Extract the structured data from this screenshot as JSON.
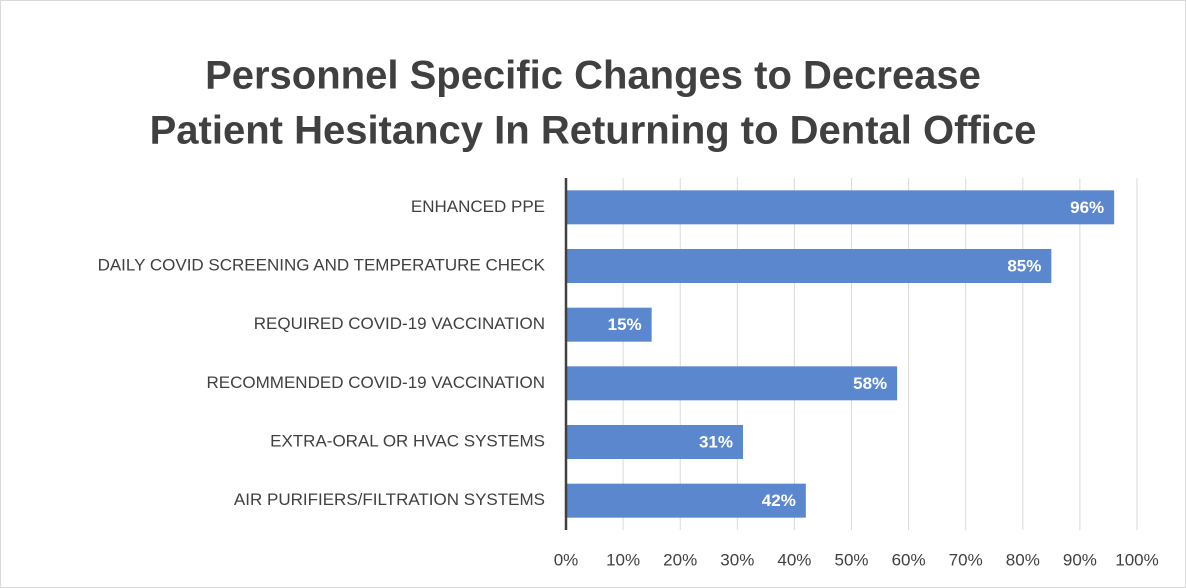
{
  "chart_data": {
    "type": "hbar",
    "title": [
      "Personnel Specific Changes to Decrease",
      "Patient Hesitancy In Returning to Dental Office"
    ],
    "categories": [
      "ENHANCED PPE",
      "DAILY COVID SCREENING AND TEMPERATURE CHECK",
      "REQUIRED COVID-19 VACCINATION",
      "RECOMMENDED COVID-19 VACCINATION",
      "EXTRA-ORAL OR HVAC SYSTEMS",
      "AIR PURIFIERS/FILTRATION SYSTEMS"
    ],
    "values": [
      96,
      85,
      15,
      58,
      31,
      42
    ],
    "value_labels": [
      "96%",
      "85%",
      "15%",
      "58%",
      "31%",
      "42%"
    ],
    "color": "#5b87cf",
    "xlim": [
      0,
      100
    ],
    "xticks": [
      {
        "value": 0,
        "label": "0%"
      },
      {
        "value": 10,
        "label": "10%"
      },
      {
        "value": 20,
        "label": "20%"
      },
      {
        "value": 30,
        "label": "30%"
      },
      {
        "value": 40,
        "label": "40%"
      },
      {
        "value": 50,
        "label": "50%"
      },
      {
        "value": 60,
        "label": "60%"
      },
      {
        "value": 70,
        "label": "70%"
      },
      {
        "value": 80,
        "label": "80%"
      },
      {
        "value": 90,
        "label": "90%"
      },
      {
        "value": 100,
        "label": "100%"
      }
    ],
    "grid": true
  }
}
